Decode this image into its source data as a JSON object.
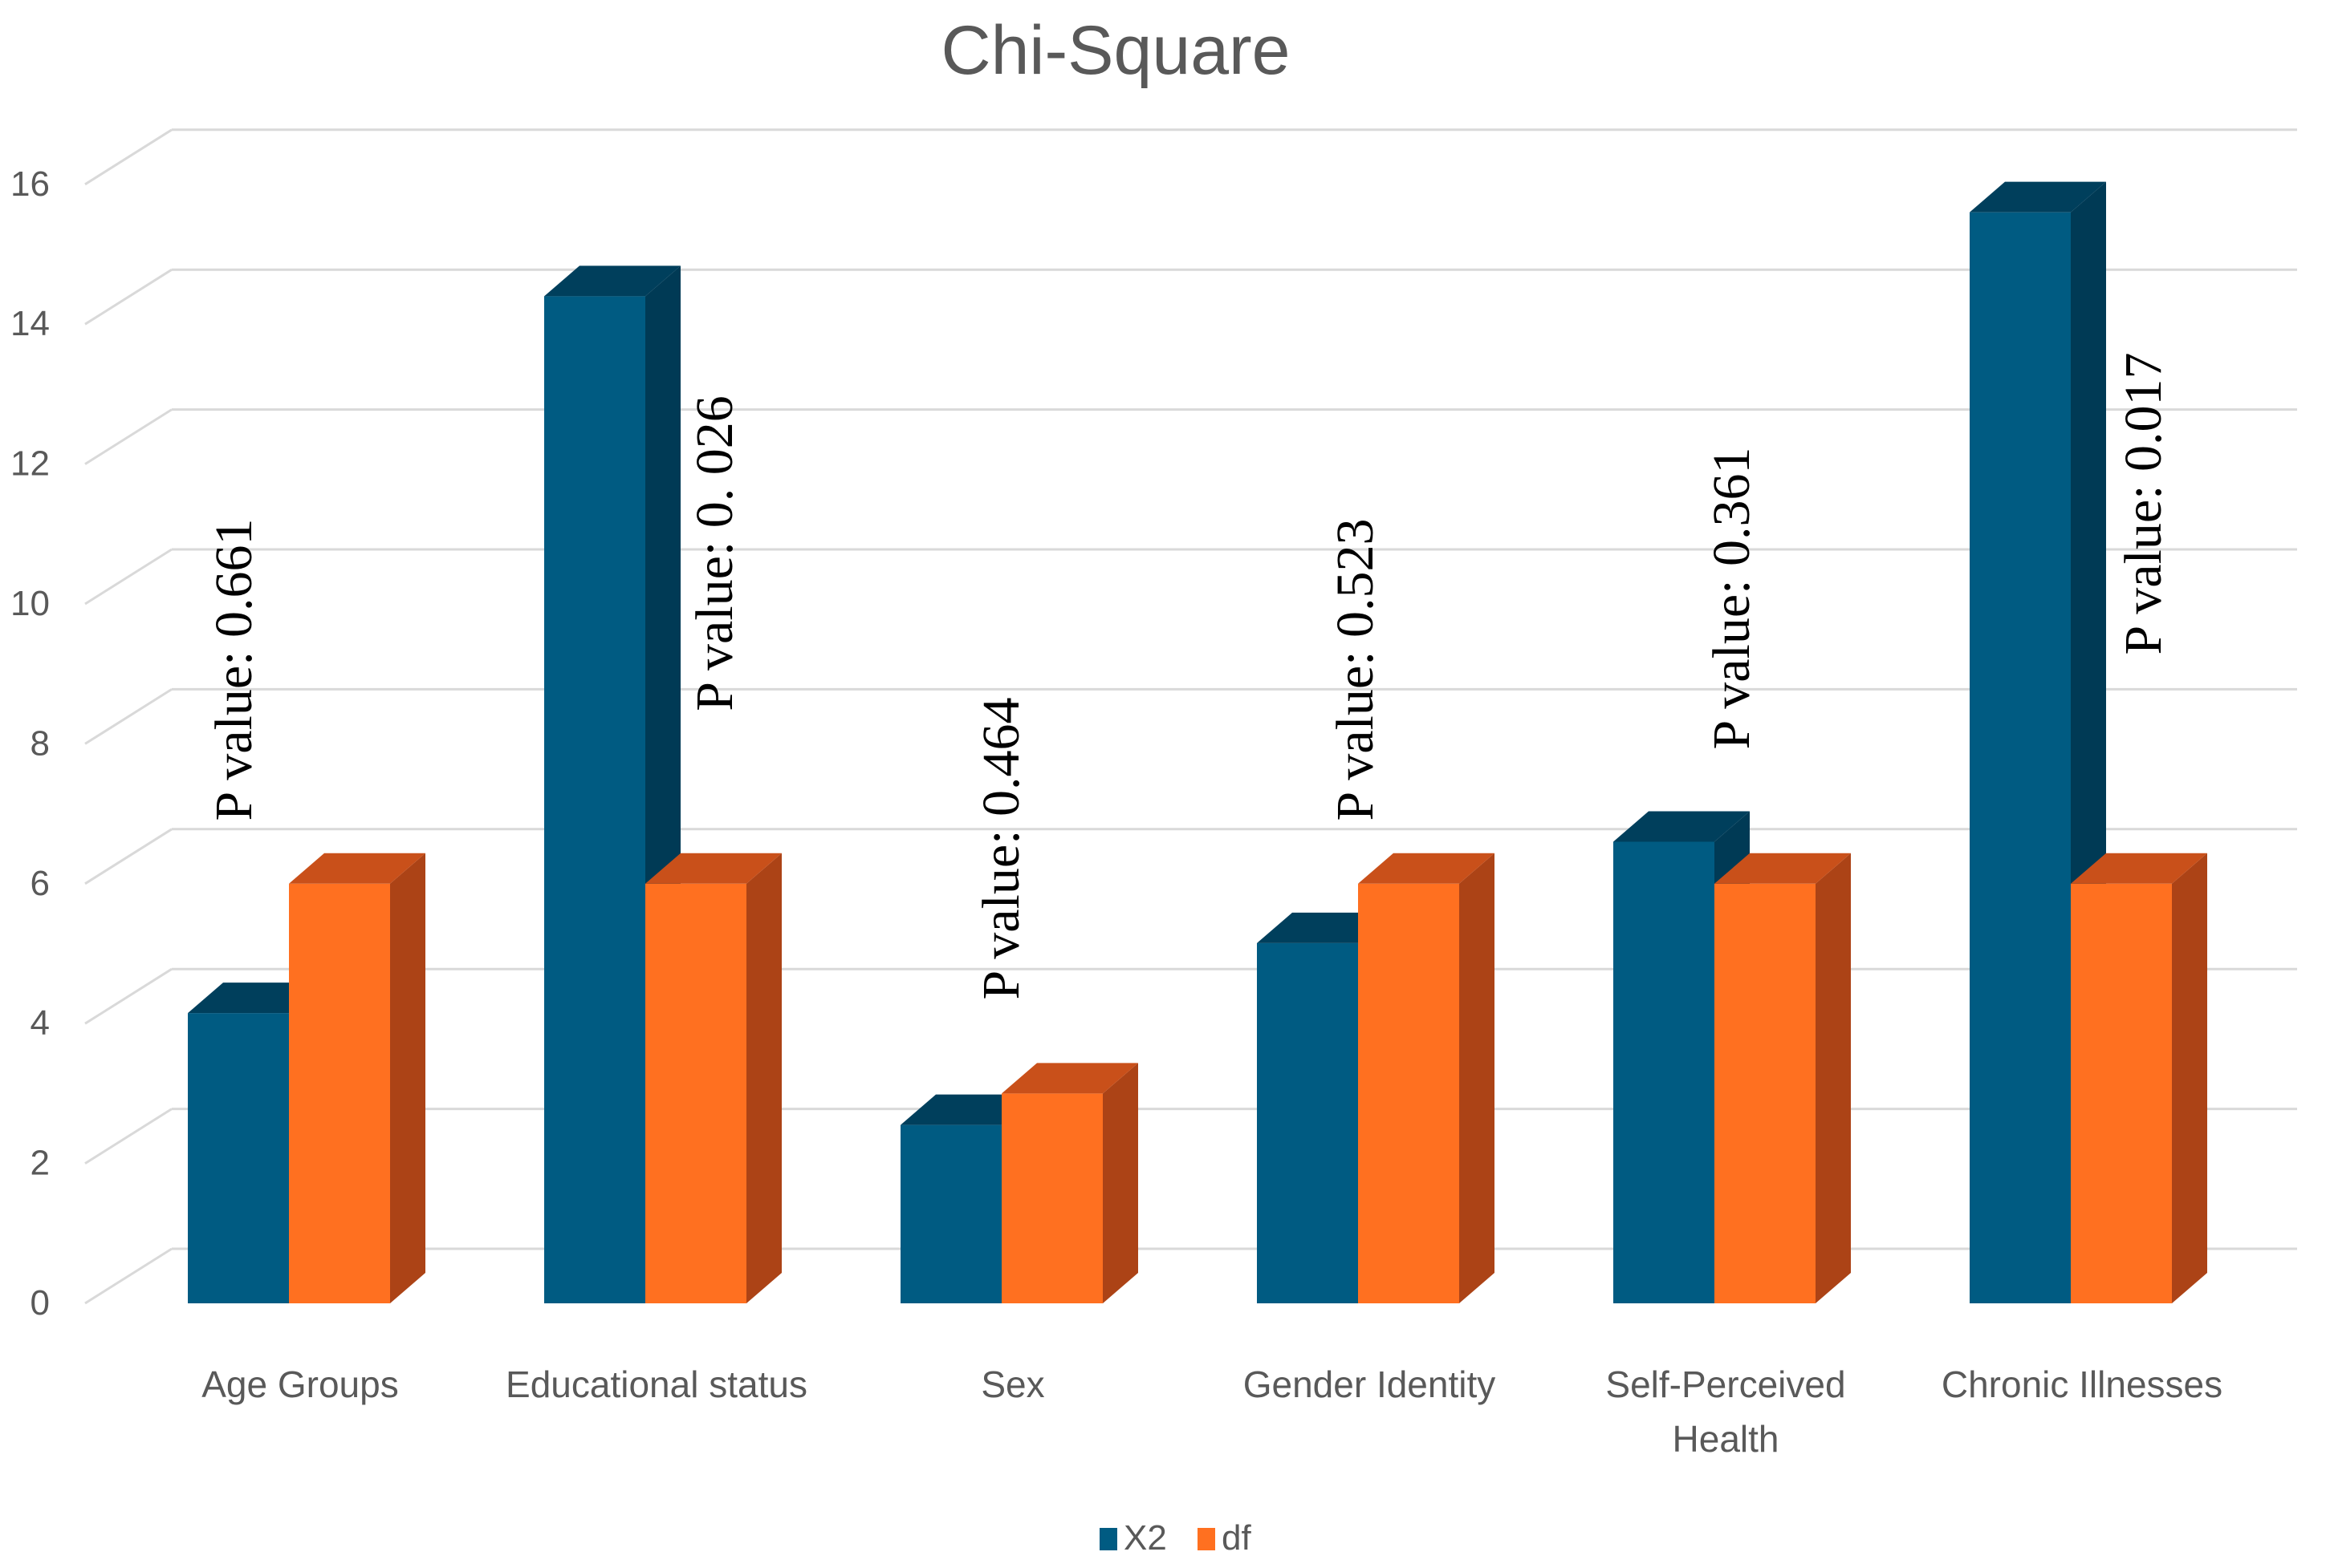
{
  "chart_data": {
    "type": "bar",
    "title": "Chi-Square",
    "categories": [
      [
        "Age Groups"
      ],
      [
        "Educational status"
      ],
      [
        "Sex"
      ],
      [
        "Gender Identity"
      ],
      [
        "Self-Perceived",
        "Health"
      ],
      [
        "Chronic Illnesses"
      ]
    ],
    "series": [
      {
        "name": "X2",
        "values": [
          4.15,
          14.4,
          2.55,
          5.15,
          6.6,
          15.6
        ],
        "color": "#005B82",
        "top_color": "#003F5C",
        "side_color": "#003A55"
      },
      {
        "name": "df",
        "values": [
          6,
          6,
          3,
          6,
          6,
          6
        ],
        "color": "#FF7020",
        "top_color": "#C9501A",
        "side_color": "#AC4316"
      }
    ],
    "annotations": [
      "P value: 0.661",
      "P value: 0. 026",
      "P value: 0.464",
      "P value: 0.523",
      "P value: 0.361",
      "P value: 0.017"
    ],
    "ylim": [
      0,
      16
    ],
    "yticks": [
      0,
      2,
      4,
      6,
      8,
      10,
      12,
      14,
      16
    ],
    "grid": true,
    "legend_position": "bottom",
    "view": "3d-clustered-column"
  }
}
